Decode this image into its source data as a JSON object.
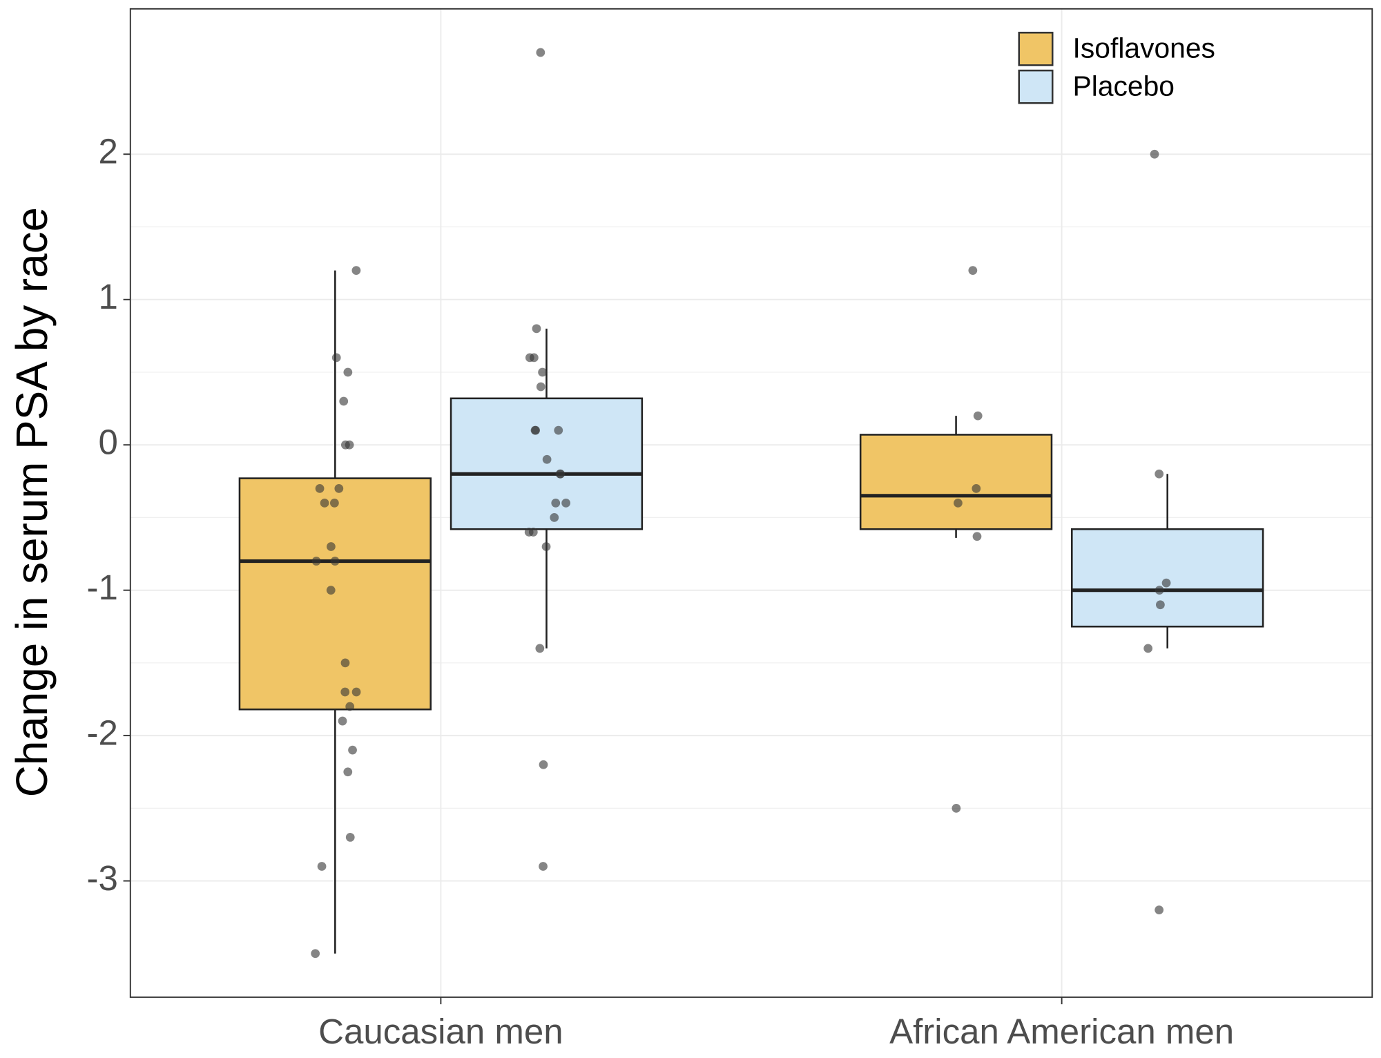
{
  "chart_data": {
    "type": "box",
    "y_label": "Change in serum PSA by race",
    "categories": [
      "Caucasian men",
      "African American men"
    ],
    "ylim": [
      -3.8,
      3.0
    ],
    "yticks": [
      -3,
      -2,
      -1,
      0,
      1,
      2
    ],
    "grid": true,
    "legend": "top-right",
    "series": [
      {
        "name": "Isoflavones",
        "color": "#f0c566",
        "boxes": [
          {
            "whisker_low": -3.5,
            "q1": -1.82,
            "median": -0.8,
            "q3": -0.23,
            "whisker_high": 1.2,
            "points": [
              1.2,
              0.6,
              0.5,
              0.3,
              0,
              0,
              -0.3,
              -0.3,
              -0.4,
              -0.4,
              -0.7,
              -0.8,
              -0.8,
              -1.0,
              -1.5,
              -1.7,
              -1.7,
              -1.8,
              -1.9,
              -2.1,
              -2.25,
              -2.7,
              -2.9,
              -3.5
            ]
          },
          {
            "whisker_low": -0.64,
            "q1": -0.58,
            "median": -0.35,
            "q3": 0.07,
            "whisker_high": 0.2,
            "points": [
              1.2,
              0.2,
              -0.3,
              -0.4,
              -0.63,
              -2.5
            ]
          }
        ]
      },
      {
        "name": "Placebo",
        "color": "#cfe6f6",
        "boxes": [
          {
            "whisker_low": -1.4,
            "q1": -0.58,
            "median": -0.2,
            "q3": 0.32,
            "whisker_high": 0.8,
            "points": [
              2.7,
              0.8,
              0.6,
              0.6,
              0.5,
              0.4,
              0.1,
              0.1,
              0.1,
              -0.1,
              -0.2,
              -0.2,
              -0.4,
              -0.4,
              -0.5,
              -0.6,
              -0.6,
              -0.7,
              -1.4,
              -2.2,
              -2.9
            ]
          },
          {
            "whisker_low": -1.4,
            "q1": -1.25,
            "median": -1.0,
            "q3": -0.58,
            "whisker_high": -0.2,
            "points": [
              2.0,
              -0.2,
              -0.95,
              -1.0,
              -1.1,
              -1.4,
              -3.2
            ]
          }
        ]
      }
    ]
  }
}
